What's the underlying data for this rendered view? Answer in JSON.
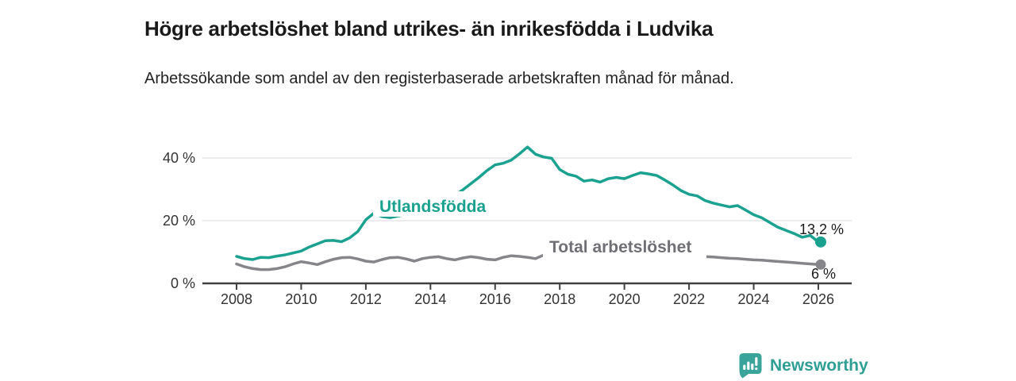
{
  "header": {
    "title": "Högre arbetslöshet bland utrikes- än inrikesfödda i Ludvika",
    "subtitle": "Arbetssökande som andel av den registerbaserade arbetskraften månad för månad."
  },
  "branding": {
    "logo_text": "Newsworthy",
    "brand_color": "#2f9e94",
    "logo_icon": "bar-chart-speech-bubble"
  },
  "chart_data": {
    "type": "line",
    "title": "Högre arbetslöshet bland utrikes- än inrikesfödda i Ludvika",
    "subtitle": "Arbetssökande som andel av den registerbaserade arbetskraften månad för månad.",
    "xlabel": "",
    "ylabel": "",
    "xlim": [
      2007.0,
      2027.0
    ],
    "ylim": [
      0,
      46
    ],
    "grid": "horizontal-only",
    "legend": "inline-series-labels",
    "x_unit": "decimal-year (quarterly samples)",
    "y_unit": "percent",
    "xticks": [
      2008,
      2010,
      2012,
      2014,
      2016,
      2018,
      2020,
      2022,
      2024,
      2026
    ],
    "yticks": [
      {
        "value": 0,
        "label": "0 %"
      },
      {
        "value": 20,
        "label": "20 %"
      },
      {
        "value": 40,
        "label": "40 %"
      }
    ],
    "x": [
      2008,
      2008.25,
      2008.5,
      2008.75,
      2009,
      2009.25,
      2009.5,
      2009.75,
      2010,
      2010.25,
      2010.5,
      2010.75,
      2011,
      2011.25,
      2011.5,
      2011.75,
      2012,
      2012.25,
      2012.5,
      2012.75,
      2013,
      2013.25,
      2013.5,
      2013.75,
      2014,
      2014.25,
      2014.5,
      2014.75,
      2015,
      2015.25,
      2015.5,
      2015.75,
      2016,
      2016.25,
      2016.5,
      2016.75,
      2017,
      2017.25,
      2017.5,
      2017.75,
      2018,
      2018.25,
      2018.5,
      2018.75,
      2019,
      2019.25,
      2019.5,
      2019.75,
      2020,
      2020.25,
      2020.5,
      2020.75,
      2021,
      2021.25,
      2021.5,
      2021.75,
      2022,
      2022.25,
      2022.5,
      2022.75,
      2023,
      2023.25,
      2023.5,
      2023.75,
      2024,
      2024.25,
      2024.5,
      2024.75,
      2025,
      2025.25,
      2025.5,
      2025.75,
      2026
    ],
    "series": [
      {
        "name": "Utlandsfödda",
        "color": "#1aa18f",
        "label_color": "#1aa18f",
        "end_label": "13,2 %",
        "end_value": 13.2,
        "values": [
          8.6,
          7.9,
          7.6,
          8.3,
          8.2,
          8.7,
          9.1,
          9.7,
          10.3,
          11.6,
          12.6,
          13.6,
          13.7,
          13.3,
          14.5,
          16.5,
          20.3,
          22.4,
          21.3,
          21.0,
          21.5,
          22.0,
          22.5,
          23.0,
          23.5,
          24.5,
          26.0,
          28.2,
          29.8,
          31.8,
          33.8,
          36.0,
          37.8,
          38.3,
          39.3,
          41.3,
          43.5,
          41.2,
          40.3,
          39.9,
          36.3,
          34.8,
          34.2,
          32.6,
          33.0,
          32.3,
          33.4,
          33.8,
          33.4,
          34.4,
          35.3,
          34.9,
          34.4,
          33.0,
          31.4,
          29.6,
          28.4,
          27.9,
          26.4,
          25.6,
          25.0,
          24.4,
          24.8,
          23.4,
          21.9,
          20.9,
          19.4,
          17.9,
          16.9,
          15.9,
          14.7,
          15.3,
          13.2
        ]
      },
      {
        "name": "Total arbetslöshet",
        "color": "#85858a",
        "label_color": "#6f6f75",
        "end_label": "6 %",
        "end_value": 6,
        "values": [
          6.2,
          5.3,
          4.7,
          4.4,
          4.4,
          4.7,
          5.3,
          6.2,
          6.9,
          6.5,
          6.0,
          6.9,
          7.7,
          8.2,
          8.3,
          7.8,
          7.1,
          6.8,
          7.6,
          8.2,
          8.3,
          7.8,
          7.1,
          7.9,
          8.3,
          8.5,
          7.9,
          7.5,
          8.1,
          8.5,
          8.2,
          7.7,
          7.5,
          8.3,
          8.8,
          8.6,
          8.3,
          7.9,
          9.0,
          10.4,
          10.7,
          10.3,
          9.9,
          10.2,
          10.4,
          10.0,
          9.7,
          9.9,
          10.3,
          10.9,
          10.6,
          10.2,
          9.9,
          9.6,
          9.3,
          9.0,
          8.8,
          8.7,
          8.5,
          8.4,
          8.2,
          8.0,
          7.9,
          7.7,
          7.5,
          7.4,
          7.2,
          7.0,
          6.8,
          6.6,
          6.4,
          6.2,
          6.0
        ]
      }
    ]
  }
}
